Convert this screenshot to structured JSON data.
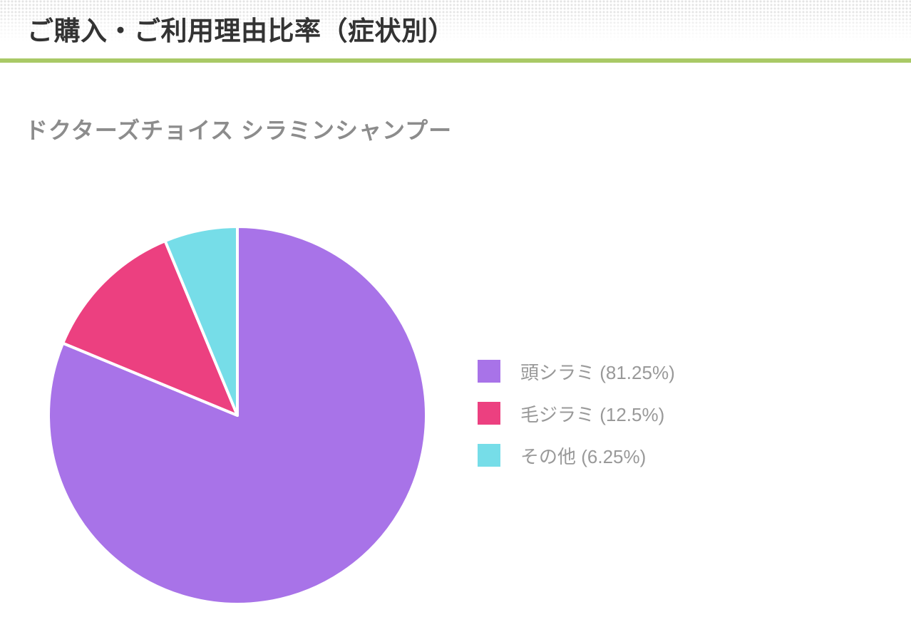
{
  "header": {
    "title": "ご購入・ご利用理由比率（症状別）"
  },
  "subtitle": "ドクターズチョイス シラミンシャンプー",
  "chart_data": {
    "type": "pie",
    "title": "ご購入・ご利用理由比率（症状別）",
    "subtitle": "ドクターズチョイス シラミンシャンプー",
    "slices": [
      {
        "label": "頭シラミ",
        "value": 81.25,
        "display": "頭シラミ (81.25%)",
        "color": "#a873e8"
      },
      {
        "label": "毛ジラミ",
        "value": 12.5,
        "display": "毛ジラミ (12.5%)",
        "color": "#ec4080"
      },
      {
        "label": "その他",
        "value": 6.25,
        "display": "その他 (6.25%)",
        "color": "#76dde8"
      }
    ],
    "start_angle_deg": -90,
    "direction": "clockwise",
    "legend_position": "right",
    "separator_color": "#ffffff",
    "separator_width": 4
  },
  "colors": {
    "accent_line": "#a9c966",
    "title_text": "#333333",
    "subtitle_text": "#8c8c8c",
    "legend_text": "#999999",
    "background": "#ffffff"
  }
}
